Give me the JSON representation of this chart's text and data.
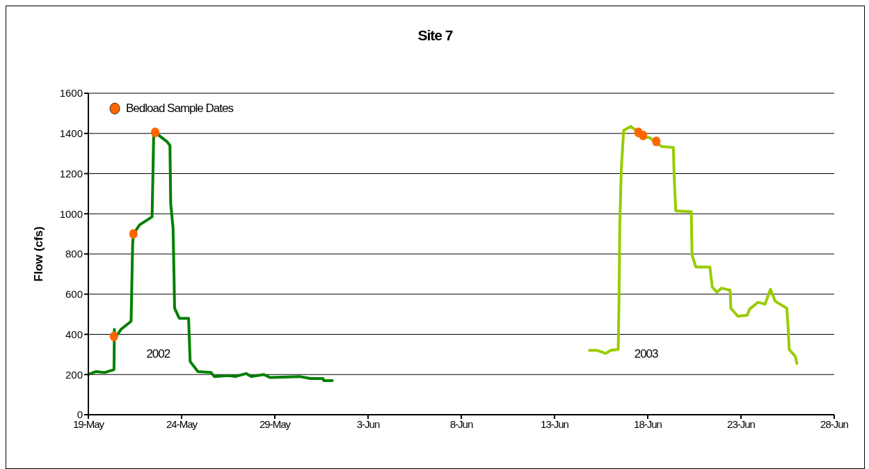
{
  "chart_data": {
    "type": "line",
    "title": "Site 7",
    "ylabel": "Flow (cfs)",
    "xlim": [
      "--05-19",
      "--06-28"
    ],
    "xticks": [
      {
        "value": "--05-19",
        "label": "19-May"
      },
      {
        "value": "--05-24",
        "label": "24-May"
      },
      {
        "value": "--05-29",
        "label": "29-May"
      },
      {
        "value": "--06-03",
        "label": "3-Jun"
      },
      {
        "value": "--06-08",
        "label": "8-Jun"
      },
      {
        "value": "--06-13",
        "label": "13-Jun"
      },
      {
        "value": "--06-18",
        "label": "18-Jun"
      },
      {
        "value": "--06-23",
        "label": "23-Jun"
      },
      {
        "value": "--06-28",
        "label": "28-Jun"
      }
    ],
    "ylim": [
      0,
      1600
    ],
    "yticks": [
      0,
      200,
      400,
      600,
      800,
      1000,
      1200,
      1400,
      1600
    ],
    "grid": "y",
    "legend": "top left",
    "line_style": "solid",
    "series": [
      {
        "name": "2002",
        "color": "#008000",
        "marker": "none",
        "x": [
          "--05-19T00:00",
          "--05-19T10:00",
          "--05-19T21:00",
          "--05-20T09:00",
          "--05-20T09:30",
          "--05-20T10:00",
          "--05-20T18:00",
          "--05-21T07:00",
          "--05-21T09:00",
          "--05-21T10:00",
          "--05-21T18:00",
          "--05-22T10:00",
          "--05-22T11:00",
          "--05-22T12:00",
          "--05-22T14:00",
          "--05-23T05:00",
          "--05-23T09:00",
          "--05-23T10:00",
          "--05-23T13:00",
          "--05-23T14:00",
          "--05-23T15:00",
          "--05-23T21:00",
          "--05-24T09:00",
          "--05-24T11:00",
          "--05-24T21:00",
          "--05-25T14:00",
          "--05-25T18:00",
          "--05-26T12:00",
          "--05-26T21:00",
          "--05-27T11:00",
          "--05-27T18:00",
          "--05-28T10:00",
          "--05-28T18:00",
          "--05-30T08:00",
          "--05-30T22:00",
          "--05-31T14:00",
          "--05-31T15:00",
          "--06-01T02:00"
        ],
        "values": [
          200,
          215,
          210,
          225,
          425,
          380,
          425,
          465,
          850,
          900,
          945,
          985,
          1170,
          1380,
          1405,
          1360,
          1340,
          1050,
          930,
          740,
          530,
          480,
          480,
          265,
          215,
          210,
          190,
          195,
          190,
          205,
          190,
          200,
          185,
          190,
          180,
          180,
          170,
          170
        ]
      },
      {
        "name": "2003",
        "color": "#99cc00",
        "marker": "none",
        "x": [
          "--06-14T21:00",
          "--06-15T07:00",
          "--06-15T18:00",
          "--06-16T00:00",
          "--06-16T10:00",
          "--06-16T11:00",
          "--06-16T12:00",
          "--06-16T14:00",
          "--06-16T17:00",
          "--06-17T02:00",
          "--06-17T09:00",
          "--06-17T15:00",
          "--06-18T02:00",
          "--06-18T18:00",
          "--06-19T09:00",
          "--06-19T10:00",
          "--06-19T12:00",
          "--06-20T08:00",
          "--06-20T09:00",
          "--06-20T14:00",
          "--06-21T08:00",
          "--06-21T11:00",
          "--06-21T17:00",
          "--06-21T23:00",
          "--06-22T10:00",
          "--06-22T11:00",
          "--06-22T20:00",
          "--06-23T08:00",
          "--06-23T11:00",
          "--06-23T22:00",
          "--06-24T07:00",
          "--06-24T14:00",
          "--06-24T20:00",
          "--06-25T11:00",
          "--06-25T13:00",
          "--06-25T14:00",
          "--06-25T22:00",
          "--06-26T00:00"
        ],
        "values": [
          320,
          320,
          305,
          320,
          325,
          570,
          945,
          1225,
          1415,
          1435,
          1415,
          1380,
          1380,
          1335,
          1330,
          1185,
          1015,
          1010,
          795,
          735,
          735,
          635,
          610,
          630,
          620,
          530,
          490,
          495,
          525,
          560,
          550,
          625,
          565,
          530,
          415,
          325,
          290,
          255
        ]
      },
      {
        "name": "Bedload Sample Dates",
        "type": "scatter",
        "color": "#ff6600",
        "marker": "circle",
        "x": [
          "--05-20T09:00",
          "--05-21T10:00",
          "--05-22T14:00",
          "--06-17T12:00",
          "--06-17T18:00",
          "--06-18T11:00"
        ],
        "values": [
          390,
          900,
          1405,
          1405,
          1390,
          1360
        ]
      }
    ]
  }
}
